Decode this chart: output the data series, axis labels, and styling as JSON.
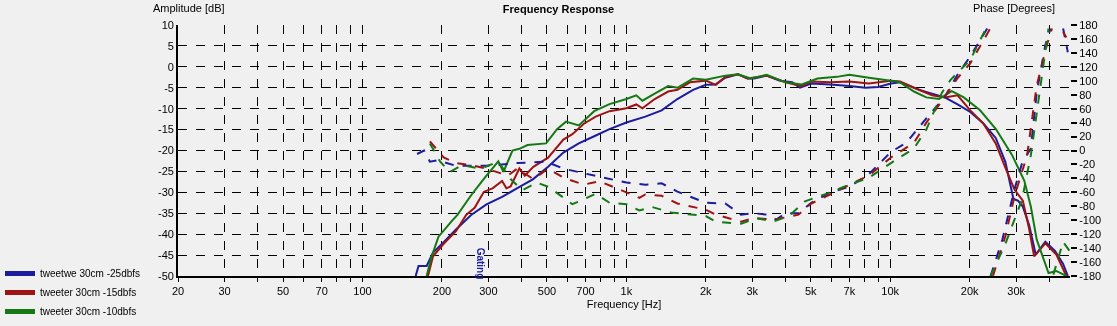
{
  "chart_data": {
    "type": "line",
    "title": "Frequency Response",
    "xlabel": "Frequency [Hz]",
    "ylabel": "Amplitude [dB]",
    "y2label": "Phase [Degrees]",
    "log": "x",
    "grid": true,
    "legend": "bottom left",
    "xlim": [
      20,
      48000
    ],
    "xticks": [
      20,
      30,
      {
        "value": 40,
        "label": null
      },
      50,
      {
        "value": 60,
        "label": null
      },
      70,
      {
        "value": 80,
        "label": null
      },
      {
        "value": 90,
        "label": null
      },
      100,
      200,
      300,
      {
        "value": 400,
        "label": null
      },
      500,
      {
        "value": 600,
        "label": null
      },
      700,
      {
        "value": 800,
        "label": null
      },
      {
        "value": 900,
        "label": null
      },
      {
        "value": 1000,
        "label": "1k"
      },
      {
        "value": 2000,
        "label": "2k"
      },
      {
        "value": 3000,
        "label": "3k"
      },
      {
        "value": 4000,
        "label": null
      },
      {
        "value": 5000,
        "label": "5k"
      },
      {
        "value": 6000,
        "label": null
      },
      {
        "value": 7000,
        "label": "7k"
      },
      {
        "value": 8000,
        "label": null
      },
      {
        "value": 9000,
        "label": null
      },
      {
        "value": 10000,
        "label": "10k"
      },
      {
        "value": 20000,
        "label": "20k"
      },
      {
        "value": 30000,
        "label": "30k"
      },
      {
        "value": 40000,
        "label": null
      }
    ],
    "ylim": [
      -50,
      10
    ],
    "yticks": [
      -50,
      -45,
      -40,
      -35,
      -30,
      -25,
      -20,
      -15,
      -10,
      -5,
      0,
      5,
      10
    ],
    "y2lim": [
      -180,
      180
    ],
    "y2ticks": [
      -180,
      -160,
      -140,
      -120,
      -100,
      -80,
      -60,
      -40,
      -20,
      0,
      20,
      40,
      60,
      80,
      100,
      120,
      140,
      160,
      180
    ],
    "annotations": [
      "Gating"
    ],
    "series": [
      {
        "name": "tweetwe 30cm -25dbfs",
        "color": "#1c1c9c",
        "line_style": "solid",
        "x": [
          159,
          163,
          175,
          185,
          203,
          226,
          258,
          295,
          338,
          386,
          442,
          505,
          577,
          660,
          755,
          863,
          1000,
          1180,
          1360,
          1560,
          1790,
          2000,
          2180,
          2370,
          2650,
          2880,
          3050,
          3400,
          3800,
          4250,
          4550,
          5020,
          5930,
          7000,
          8050,
          9000,
          10060,
          10900,
          11900,
          12900,
          14400,
          16100,
          18000,
          20100,
          22500,
          25100,
          27300,
          29300,
          30500,
          31800,
          33600,
          35600,
          38700,
          42100,
          45200,
          47100
        ],
        "values": [
          -50,
          -47.6,
          -47.6,
          -44.4,
          -41.9,
          -38.9,
          -35.4,
          -32.9,
          -31.1,
          -29,
          -26.9,
          -23.9,
          -20.5,
          -18.3,
          -16.6,
          -14.9,
          -13.3,
          -11.9,
          -10.4,
          -7.7,
          -5.5,
          -4.3,
          -4.2,
          -2.6,
          -1.8,
          -2.8,
          -2.8,
          -2.1,
          -3.3,
          -3.7,
          -5,
          -4,
          -4.2,
          -4.6,
          -5,
          -4.8,
          -4,
          -3.7,
          -4.6,
          -5.5,
          -6.4,
          -7.3,
          -9,
          -10.8,
          -13.5,
          -17,
          -22.7,
          -31.6,
          -32,
          -33.4,
          -37.8,
          -44.9,
          -41.8,
          -44,
          -47.1,
          -50
        ]
      },
      {
        "name": "tweeter 30cm -15dbfs",
        "color": "#9c1414",
        "line_style": "solid",
        "x": [
          177,
          185,
          203,
          226,
          247,
          266,
          288,
          312,
          338,
          351,
          364,
          393,
          412,
          444,
          505,
          577,
          624,
          690,
          765,
          863,
          1000,
          1090,
          1150,
          1280,
          1440,
          1560,
          1740,
          2000,
          2180,
          2370,
          2650,
          2880,
          3400,
          4010,
          4620,
          5020,
          5930,
          7000,
          8300,
          10060,
          10900,
          12300,
          14400,
          16100,
          18000,
          20100,
          22500,
          25100,
          27300,
          29600,
          31800,
          33600,
          35100,
          38700,
          42600,
          46500
        ],
        "values": [
          -50,
          -45.3,
          -42.3,
          -39.3,
          -35.4,
          -33.7,
          -29.9,
          -29,
          -27.3,
          -29,
          -28.6,
          -24.3,
          -26,
          -23.9,
          -21.7,
          -17.4,
          -16.1,
          -13.6,
          -11.9,
          -10.6,
          -9.9,
          -9,
          -9.9,
          -7.7,
          -5.9,
          -5.5,
          -3.7,
          -3.3,
          -4.3,
          -2.4,
          -1.8,
          -2.8,
          -2.1,
          -3.7,
          -4.6,
          -3.5,
          -3.7,
          -3.5,
          -4,
          -3.3,
          -3.5,
          -5,
          -6.8,
          -7.3,
          -6.8,
          -10.4,
          -13.5,
          -18.3,
          -24.1,
          -29.4,
          -32,
          -38.7,
          -45.3,
          -42.2,
          -44.9,
          -50
        ]
      },
      {
        "name": "tweeter 30cm -10dbfs",
        "color": "#147814",
        "line_style": "solid",
        "x": [
          175,
          182,
          194,
          219,
          229,
          258,
          281,
          295,
          327,
          342,
          370,
          393,
          422,
          496,
          546,
          590,
          660,
          755,
          863,
          1000,
          1090,
          1150,
          1280,
          1440,
          1560,
          1790,
          2000,
          2370,
          2650,
          2960,
          3400,
          4010,
          4620,
          5300,
          6270,
          7000,
          8300,
          10060,
          10900,
          12300,
          13700,
          15300,
          17100,
          19000,
          21900,
          25100,
          28900,
          32200,
          34100,
          35900,
          39800,
          42600,
          46500
        ],
        "values": [
          -50,
          -45.7,
          -40.6,
          -36.7,
          -35.4,
          -30.7,
          -27.7,
          -26,
          -22.6,
          -25.1,
          -20,
          -19.6,
          -18.7,
          -18.3,
          -14.9,
          -13.1,
          -14,
          -10.6,
          -8.9,
          -7.7,
          -6.8,
          -8.1,
          -6.4,
          -4.6,
          -5,
          -2.8,
          -3.1,
          -2.1,
          -1.8,
          -2.8,
          -1.9,
          -3.7,
          -4.2,
          -2.8,
          -2.4,
          -1.9,
          -2.6,
          -3.3,
          -3.7,
          -5.9,
          -7.3,
          -7.7,
          -5.8,
          -7.3,
          -10.4,
          -14.8,
          -21,
          -27.2,
          -33.4,
          -41.3,
          -49.3,
          -48.8,
          -50
        ]
      },
      {
        "color": "#1c1c9c",
        "line_style": "dashed",
        "axis": "y2",
        "x": [
          161,
          171,
          180,
          193,
          226,
          295,
          386,
          496,
          577,
          755,
          1000,
          1180,
          1360,
          1560,
          2000,
          2370,
          2720,
          3050,
          3400,
          3700,
          4010,
          4490,
          5020,
          5930,
          7000,
          8300,
          10060,
          11500,
          13700,
          16100,
          18000,
          20100,
          23500,
          null,
          24000,
          26600,
          29600,
          31600,
          34100,
          35900,
          38700,
          40500,
          null,
          45200,
          47100
        ],
        "values": [
          -5,
          0,
          -16,
          -14,
          -22,
          -22,
          -18,
          -16,
          -26,
          -36,
          -46,
          -49,
          -47,
          -59,
          -75,
          -76,
          -92,
          -90,
          -92,
          -99,
          -90,
          -90,
          -75,
          -60,
          -52,
          -34,
          -2,
          11,
          46,
          77,
          109,
          135,
          177,
          null,
          -180,
          -128,
          -55,
          -18,
          3,
          83,
          151,
          175,
          null,
          175,
          141
        ]
      },
      {
        "color": "#9c1414",
        "line_style": "dashed",
        "axis": "y2",
        "x": [
          180,
          203,
          226,
          258,
          295,
          355,
          386,
          444,
          505,
          577,
          690,
          789,
          1000,
          1120,
          1180,
          1360,
          1560,
          2000,
          2180,
          2720,
          3050,
          3600,
          4010,
          4490,
          5020,
          5930,
          7000,
          8300,
          10060,
          12300,
          13700,
          16100,
          18000,
          20100,
          24100,
          null,
          24500,
          27300,
          29600,
          33000,
          35900,
          39200,
          41000,
          null,
          45200,
          46500
        ],
        "values": [
          13,
          -10,
          -18,
          -21,
          -26,
          -36,
          -26,
          -41,
          -26,
          -39,
          -49,
          -44,
          -60,
          -68,
          -63,
          -65,
          -76,
          -85,
          -92,
          -102,
          -97,
          -99,
          -96,
          -92,
          -76,
          -63,
          -49,
          -36,
          -10,
          11,
          40,
          77,
          104,
          125,
          177,
          null,
          -180,
          -123,
          -65,
          -7,
          93,
          151,
          175,
          null,
          170,
          162
        ]
      },
      {
        "color": "#147814",
        "line_style": "dashed",
        "axis": "y2",
        "x": [
          180,
          197,
          214,
          238,
          281,
          327,
          364,
          403,
          458,
          505,
          560,
          624,
          690,
          765,
          863,
          1000,
          1120,
          1250,
          1480,
          2000,
          2180,
          2720,
          3120,
          3600,
          4130,
          4750,
          5930,
          7000,
          8300,
          10060,
          12300,
          13700,
          15700,
          16900,
          20100,
          23200,
          null,
          24000,
          27300,
          31600,
          34100,
          36800,
          39800,
          null,
          41500,
          45200,
          47800
        ],
        "values": [
          10,
          -16,
          -31,
          -21,
          -26,
          -16,
          -41,
          -57,
          -46,
          -52,
          -64,
          -77,
          -70,
          -62,
          -75,
          -77,
          -86,
          -81,
          -89,
          -94,
          -102,
          -105,
          -97,
          -102,
          -94,
          -73,
          -60,
          -49,
          -39,
          -18,
          3,
          30,
          83,
          101,
          130,
          177,
          null,
          -180,
          -134,
          -70,
          -7,
          83,
          175,
          null,
          -178,
          -131,
          -144
        ]
      }
    ]
  }
}
